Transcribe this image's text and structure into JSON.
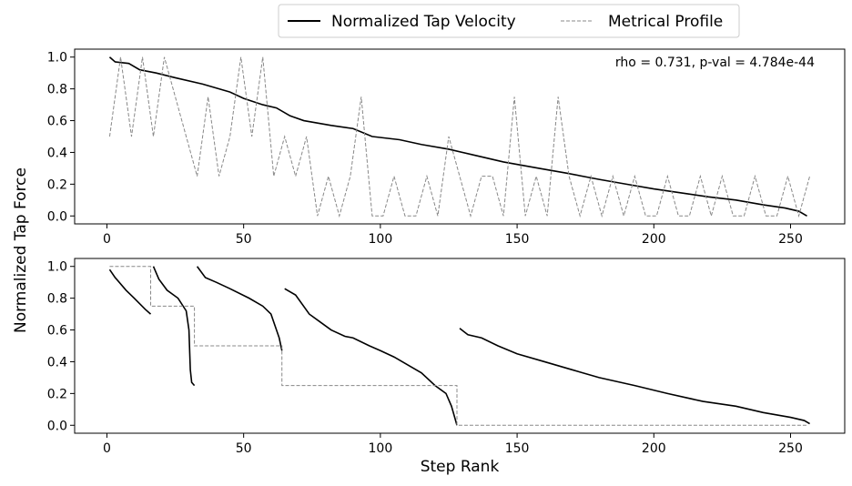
{
  "chart_data": [
    {
      "type": "line",
      "ylabel": "Normalized Tap Force",
      "annotation": "rho = 0.731, p-val = 4.784e-44",
      "legend": "upper center outside",
      "xlim": [
        -11.8,
        269.8
      ],
      "xticks": [
        0,
        50,
        100,
        150,
        200,
        250
      ],
      "ylim": [
        -0.05,
        1.05
      ],
      "yticks": [
        {
          "value": 0,
          "label": "0.0"
        },
        {
          "value": 0.2,
          "label": "0.2"
        },
        {
          "value": 0.4,
          "label": "0.4"
        },
        {
          "value": 0.6,
          "label": "0.6"
        },
        {
          "value": 0.8,
          "label": "0.8"
        },
        {
          "value": 1,
          "label": "1.0"
        }
      ],
      "series": [
        {
          "name": "Normalized Tap Velocity",
          "color": "#000000",
          "style": "solid",
          "x": [
            1,
            3,
            8,
            12,
            18,
            25,
            35,
            45,
            50,
            57,
            62,
            67,
            72,
            82,
            90,
            97,
            107,
            115,
            125,
            135,
            145,
            158,
            168,
            180,
            190,
            200,
            212,
            220,
            230,
            240,
            248,
            253,
            256
          ],
          "values": [
            1.0,
            0.97,
            0.96,
            0.92,
            0.9,
            0.87,
            0.83,
            0.78,
            0.74,
            0.7,
            0.68,
            0.63,
            0.6,
            0.57,
            0.55,
            0.5,
            0.48,
            0.45,
            0.42,
            0.38,
            0.34,
            0.3,
            0.27,
            0.23,
            0.2,
            0.17,
            0.14,
            0.12,
            0.1,
            0.07,
            0.05,
            0.03,
            0.0
          ]
        },
        {
          "name": "Metrical Profile",
          "color": "#888888",
          "style": "dashed",
          "x": [
            1,
            5,
            9,
            13,
            17,
            21,
            25,
            29,
            33,
            37,
            41,
            45,
            49,
            53,
            57,
            61,
            65,
            69,
            73,
            77,
            81,
            85,
            89,
            93,
            97,
            101,
            105,
            109,
            113,
            117,
            121,
            125,
            129,
            133,
            137,
            141,
            145,
            149,
            153,
            157,
            161,
            165,
            169,
            173,
            177,
            181,
            185,
            189,
            193,
            197,
            201,
            205,
            209,
            213,
            217,
            221,
            225,
            229,
            233,
            237,
            241,
            245,
            249,
            253,
            257
          ],
          "values": [
            0.5,
            1,
            0.5,
            1,
            0.5,
            1,
            0.75,
            0.5,
            0.25,
            0.75,
            0.25,
            0.5,
            1,
            0.5,
            1,
            0.25,
            0.5,
            0.25,
            0.5,
            0,
            0.25,
            0,
            0.25,
            0.75,
            0,
            0,
            0.25,
            0,
            0,
            0.25,
            0,
            0.5,
            0.25,
            0,
            0.25,
            0.25,
            0,
            0.75,
            0,
            0.25,
            0,
            0.75,
            0.25,
            0,
            0.25,
            0,
            0.25,
            0,
            0.25,
            0,
            0,
            0.25,
            0,
            0,
            0.25,
            0,
            0.25,
            0,
            0,
            0.25,
            0,
            0,
            0.25,
            0,
            0.25
          ]
        }
      ]
    },
    {
      "type": "line",
      "xlabel": "Step Rank",
      "xlim": [
        -11.8,
        269.8
      ],
      "xticks": [
        0,
        50,
        100,
        150,
        200,
        250
      ],
      "ylim": [
        -0.05,
        1.05
      ],
      "yticks": [
        {
          "value": 0,
          "label": "0.0"
        },
        {
          "value": 0.2,
          "label": "0.2"
        },
        {
          "value": 0.4,
          "label": "0.4"
        },
        {
          "value": 0.6,
          "label": "0.6"
        },
        {
          "value": 0.8,
          "label": "0.8"
        },
        {
          "value": 1,
          "label": "1.0"
        }
      ],
      "series": [
        {
          "color": "#000000",
          "style": "solid",
          "x": [
            1,
            3,
            7,
            10,
            14,
            16,
            16.5,
            17,
            19,
            22,
            26,
            29,
            30,
            30.5,
            31,
            32,
            32.5,
            33,
            36,
            40,
            45,
            52,
            57,
            60,
            62,
            63,
            64,
            64.5,
            65,
            69,
            74,
            78,
            82,
            87,
            90,
            96,
            100,
            105,
            108,
            111,
            115,
            120,
            124,
            126,
            128,
            128.5,
            129,
            132,
            137,
            143,
            150,
            160,
            170,
            180,
            193,
            205,
            218,
            230,
            240,
            250,
            255,
            257
          ],
          "values": [
            0.98,
            0.93,
            0.85,
            0.8,
            0.73,
            0.7,
            null,
            1.0,
            0.92,
            0.85,
            0.8,
            0.72,
            0.6,
            0.35,
            0.27,
            0.25,
            null,
            1.0,
            0.93,
            0.9,
            0.86,
            0.8,
            0.75,
            0.7,
            0.6,
            0.55,
            0.47,
            null,
            0.86,
            0.82,
            0.7,
            0.65,
            0.6,
            0.56,
            0.55,
            0.5,
            0.47,
            0.43,
            0.4,
            0.37,
            0.33,
            0.25,
            0.2,
            0.12,
            0.0,
            null,
            0.61,
            0.57,
            0.55,
            0.5,
            0.45,
            0.4,
            0.35,
            0.3,
            0.25,
            0.2,
            0.15,
            0.12,
            0.08,
            0.05,
            0.03,
            0.01
          ]
        },
        {
          "color": "#888888",
          "style": "dashed",
          "x": [
            1,
            16,
            16,
            32,
            32,
            64,
            64,
            128,
            128,
            256
          ],
          "values": [
            1,
            1,
            0.75,
            0.75,
            0.5,
            0.5,
            0.25,
            0.25,
            0,
            0
          ]
        }
      ]
    }
  ]
}
